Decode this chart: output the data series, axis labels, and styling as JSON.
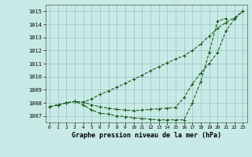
{
  "background_color": "#c8eae6",
  "grid_color": "#88bbbb",
  "line_color": "#1a5c1a",
  "title": "Graphe pression niveau de la mer (hPa)",
  "x_values": [
    0,
    1,
    2,
    3,
    4,
    5,
    6,
    7,
    8,
    9,
    10,
    11,
    12,
    13,
    14,
    15,
    16,
    17,
    18,
    19,
    20,
    21,
    22,
    23
  ],
  "line_top": [
    1007.7,
    1007.85,
    1008.0,
    1008.1,
    1008.05,
    1008.3,
    1008.65,
    1008.9,
    1009.2,
    1009.5,
    1009.8,
    1010.1,
    1010.45,
    1010.75,
    1011.05,
    1011.35,
    1011.6,
    1012.0,
    1012.5,
    1013.1,
    1013.7,
    1014.15,
    1014.5,
    1015.0
  ],
  "line_mid": [
    1007.7,
    1007.85,
    1008.0,
    1008.1,
    1008.05,
    1007.85,
    1007.7,
    1007.6,
    1007.5,
    1007.45,
    1007.4,
    1007.45,
    1007.5,
    1007.55,
    1007.6,
    1007.65,
    1008.4,
    1009.45,
    1010.3,
    1011.0,
    1011.85,
    1013.5,
    1014.4,
    1015.0
  ],
  "line_bot": [
    1007.7,
    1007.85,
    1008.0,
    1008.1,
    1007.85,
    1007.45,
    1007.2,
    1007.15,
    1007.0,
    1006.95,
    1006.85,
    1006.8,
    1006.75,
    1006.7,
    1006.7,
    1006.7,
    1006.7,
    1008.0,
    1009.65,
    1011.85,
    1014.25,
    1014.45
  ],
  "line_bot_x": [
    0,
    1,
    2,
    3,
    4,
    5,
    6,
    7,
    8,
    9,
    10,
    11,
    12,
    13,
    14,
    15,
    16,
    17,
    18,
    19,
    20,
    21
  ],
  "ylim": [
    1006.5,
    1015.5
  ],
  "yticks": [
    1007,
    1008,
    1009,
    1010,
    1011,
    1012,
    1013,
    1014,
    1015
  ],
  "xlim": [
    -0.5,
    23.5
  ],
  "figsize": [
    3.2,
    2.0
  ],
  "dpi": 100
}
